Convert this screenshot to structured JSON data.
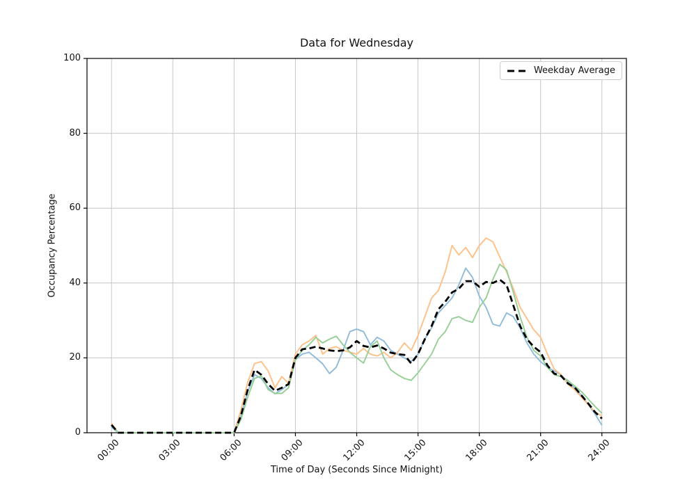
{
  "figure": {
    "background": "#ffffff"
  },
  "chart_data": {
    "type": "line",
    "title": "Data for Wednesday",
    "xlabel": "Time of Day (Seconds Since Midnight)",
    "ylabel": "Occupancy Percentage",
    "xlim_seconds": [
      -4320,
      90720
    ],
    "ylim": [
      0,
      100
    ],
    "grid": true,
    "grid_color": "#c6c6c6",
    "x_ticks_seconds": [
      0,
      10800,
      21600,
      32400,
      43200,
      54000,
      64800,
      75600,
      86400
    ],
    "x_ticklabels": [
      "00:00",
      "03:00",
      "06:00",
      "09:00",
      "12:00",
      "15:00",
      "18:00",
      "21:00",
      "24:00"
    ],
    "y_ticks": [
      0,
      20,
      40,
      60,
      80,
      100
    ],
    "y_ticklabels": [
      "0",
      "20",
      "40",
      "60",
      "80",
      "100"
    ],
    "x_seconds": [
      0,
      1200,
      2400,
      3600,
      4800,
      6000,
      7200,
      8400,
      9600,
      10800,
      12000,
      13200,
      14400,
      15600,
      16800,
      18000,
      19200,
      20400,
      21600,
      22800,
      24000,
      25200,
      26400,
      27600,
      28800,
      30000,
      31200,
      32400,
      33600,
      34800,
      36000,
      37200,
      38400,
      39600,
      40800,
      42000,
      43200,
      44400,
      45600,
      46800,
      48000,
      49200,
      50400,
      51600,
      52800,
      54000,
      55200,
      56400,
      57600,
      58800,
      60000,
      61200,
      62400,
      63600,
      64800,
      66000,
      67200,
      68400,
      69600,
      70800,
      72000,
      73200,
      74400,
      75600,
      76800,
      78000,
      79200,
      80400,
      81600,
      82800,
      84000,
      85200,
      86400
    ],
    "series": [
      {
        "label": "",
        "color": "#8fbbd9",
        "line_style": "solid",
        "line_width": 1.9,
        "values": [
          1.5,
          0,
          0,
          0,
          0,
          0,
          0,
          0,
          0,
          0,
          0,
          0,
          0,
          0,
          0,
          0,
          0,
          0,
          0,
          4.5,
          11,
          15.5,
          14.5,
          12,
          10.4,
          11.5,
          13,
          19.5,
          21,
          21.5,
          20,
          18.4,
          15.8,
          17.5,
          22,
          27,
          27.7,
          27,
          23.5,
          25.5,
          24.5,
          22,
          21,
          20,
          19,
          21,
          25,
          28,
          32,
          34,
          36,
          39.5,
          44,
          41.5,
          36.5,
          33.5,
          29,
          28.5,
          32,
          31,
          28,
          24,
          21,
          19,
          17.5,
          16.5,
          15.5,
          13.5,
          12,
          10,
          7.5,
          5,
          2
        ]
      },
      {
        "label": "",
        "color": "#ffbf86",
        "line_style": "solid",
        "line_width": 1.9,
        "values": [
          2.5,
          0,
          0,
          0,
          0,
          0,
          0,
          0,
          0,
          0,
          0,
          0,
          0,
          0,
          0,
          0,
          0,
          0,
          0,
          6,
          13.5,
          18.5,
          19,
          16.5,
          12,
          15,
          13.2,
          21,
          23.5,
          24.5,
          26,
          21,
          22.5,
          23,
          22,
          21.5,
          21,
          22.5,
          21,
          20.5,
          21.5,
          20,
          21.5,
          24,
          22,
          26,
          31,
          36,
          38,
          43,
          50,
          47.5,
          49.5,
          46.8,
          50,
          52,
          51,
          47,
          43,
          38.5,
          33.5,
          30.5,
          27.5,
          25.5,
          21,
          17,
          15.5,
          13,
          11.5,
          9.5,
          7.5,
          5.5,
          4.5
        ]
      },
      {
        "label": "",
        "color": "#95cf95",
        "line_style": "solid",
        "line_width": 1.9,
        "values": [
          2,
          0,
          0,
          0,
          0,
          0,
          0,
          0,
          0,
          0,
          0,
          0,
          0,
          0,
          0,
          0,
          0,
          0,
          0,
          3.5,
          9.5,
          14.5,
          15.2,
          11.5,
          10.5,
          10.5,
          12,
          19.5,
          22,
          23.5,
          25.5,
          24,
          25,
          25.8,
          23.5,
          21.5,
          20,
          18.6,
          23,
          24.5,
          20,
          16.8,
          15.5,
          14.5,
          14,
          16,
          18.5,
          21,
          25,
          27,
          30.5,
          31,
          30,
          29.5,
          33.5,
          36,
          41,
          45,
          43.5,
          37.5,
          31,
          25.5,
          22,
          20.5,
          17.5,
          15.5,
          15,
          14,
          12.5,
          11,
          9,
          7,
          5.2
        ]
      },
      {
        "label": "Weekday Average",
        "color": "#000000",
        "line_style": "dashed",
        "line_width": 2.8,
        "values": [
          2.1,
          0,
          0,
          0,
          0,
          0,
          0,
          0,
          0,
          0,
          0,
          0,
          0,
          0,
          0,
          0,
          0,
          0,
          0,
          4.5,
          11.5,
          16.8,
          15.5,
          13,
          11.2,
          12,
          13,
          20,
          22.3,
          22.5,
          23,
          22.5,
          22,
          21.8,
          22,
          22.8,
          24.5,
          23.2,
          22.8,
          23.3,
          22.5,
          21.4,
          21,
          20.8,
          18.5,
          21,
          25,
          28.5,
          33,
          35,
          37.5,
          38.5,
          40.5,
          40.5,
          39,
          40.3,
          40,
          40.9,
          39.5,
          34,
          28.5,
          25,
          23,
          21.5,
          18,
          15.8,
          15.2,
          13.2,
          12.1,
          10,
          7.8,
          5.5,
          3.8
        ]
      }
    ],
    "legend": {
      "position": "upper right",
      "entries": [
        {
          "label": "Weekday Average",
          "line_style": "dashed",
          "color": "#000000"
        }
      ]
    }
  }
}
